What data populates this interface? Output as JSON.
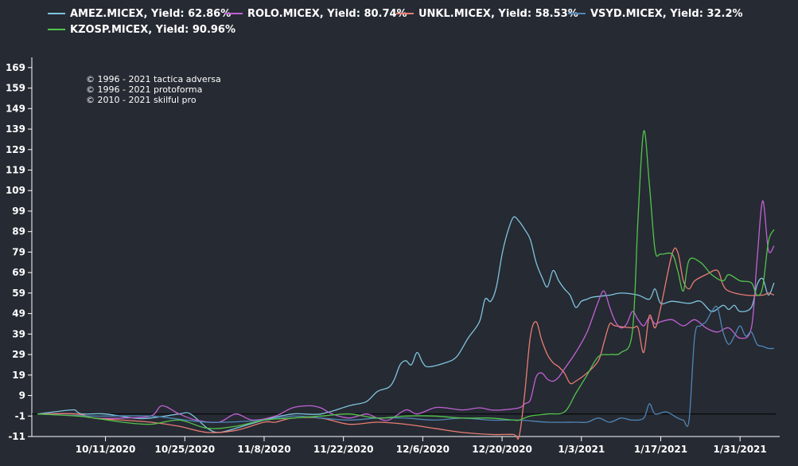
{
  "chart_data": {
    "type": "line",
    "xlabel": "",
    "ylabel": "",
    "x_ticks": [
      "10/11/2020",
      "10/25/2020",
      "11/8/2020",
      "11/22/2020",
      "12/6/2020",
      "12/20/2020",
      "1/3/2021",
      "1/17/2021",
      "1/31/2021"
    ],
    "x_tick_day": [
      12,
      26,
      40,
      54,
      68,
      82,
      96,
      110,
      124
    ],
    "x_range_day": [
      -1,
      131
    ],
    "y_ticks": [
      -11,
      -1,
      9,
      19,
      29,
      39,
      49,
      59,
      69,
      79,
      89,
      99,
      109,
      119,
      129,
      139,
      149,
      159,
      169
    ],
    "ylim": [
      -11,
      174
    ],
    "zero_line": 0,
    "copyright": [
      "© 1996 - 2021 tactica adversa",
      "© 1996 - 2021 protoforma",
      "© 2010 - 2021 skilful pro"
    ],
    "series": [
      {
        "name": "AMEZ.MICEX",
        "legend": "AMEZ.MICEX, Yield: 62.86%",
        "color": "#7fc4dc",
        "points": [
          [
            0,
            0
          ],
          [
            6,
            2
          ],
          [
            7,
            1
          ],
          [
            8,
            0
          ],
          [
            12,
            0
          ],
          [
            17,
            -2
          ],
          [
            20,
            -2
          ],
          [
            25,
            0
          ],
          [
            27,
            0
          ],
          [
            30,
            -7
          ],
          [
            32,
            -9
          ],
          [
            35,
            -7
          ],
          [
            40,
            -3
          ],
          [
            45,
            0
          ],
          [
            50,
            0
          ],
          [
            55,
            4
          ],
          [
            58,
            6
          ],
          [
            60,
            11
          ],
          [
            62,
            13
          ],
          [
            63,
            17
          ],
          [
            64,
            24
          ],
          [
            65,
            26
          ],
          [
            66,
            24
          ],
          [
            67,
            30
          ],
          [
            68,
            25
          ],
          [
            69,
            23
          ],
          [
            72,
            25
          ],
          [
            74,
            28
          ],
          [
            76,
            37
          ],
          [
            78,
            45
          ],
          [
            79,
            56
          ],
          [
            80,
            55
          ],
          [
            81,
            62
          ],
          [
            82,
            78
          ],
          [
            83,
            89
          ],
          [
            84,
            96
          ],
          [
            85,
            94
          ],
          [
            86,
            90
          ],
          [
            87,
            85
          ],
          [
            88,
            74
          ],
          [
            89,
            67
          ],
          [
            90,
            62
          ],
          [
            91,
            70
          ],
          [
            92,
            65
          ],
          [
            93,
            61
          ],
          [
            94,
            58
          ],
          [
            95,
            52
          ],
          [
            96,
            55
          ],
          [
            97,
            56
          ],
          [
            98,
            57
          ],
          [
            101,
            58
          ],
          [
            103,
            59
          ],
          [
            106,
            58
          ],
          [
            108,
            56
          ],
          [
            109,
            61
          ],
          [
            110,
            54
          ],
          [
            112,
            55
          ],
          [
            115,
            54
          ],
          [
            117,
            55
          ],
          [
            119,
            50
          ],
          [
            121,
            53
          ],
          [
            122,
            51
          ],
          [
            123,
            53
          ],
          [
            124,
            50
          ],
          [
            126,
            52
          ],
          [
            127,
            63
          ],
          [
            128,
            66
          ],
          [
            129,
            58
          ],
          [
            130,
            64
          ]
        ]
      },
      {
        "name": "ROLO.MICEX",
        "legend": "ROLO.MICEX, Yield: 80.74%",
        "color": "#c061d3",
        "points": [
          [
            0,
            0
          ],
          [
            7,
            0
          ],
          [
            10,
            -2
          ],
          [
            15,
            -2
          ],
          [
            20,
            -1
          ],
          [
            22,
            4
          ],
          [
            25,
            0
          ],
          [
            28,
            -3
          ],
          [
            32,
            -4
          ],
          [
            35,
            0
          ],
          [
            38,
            -3
          ],
          [
            42,
            -1
          ],
          [
            45,
            3
          ],
          [
            48,
            4
          ],
          [
            50,
            3
          ],
          [
            52,
            0
          ],
          [
            55,
            -2
          ],
          [
            58,
            0
          ],
          [
            60,
            -2
          ],
          [
            62,
            -3
          ],
          [
            65,
            2
          ],
          [
            67,
            0
          ],
          [
            70,
            3
          ],
          [
            72,
            3
          ],
          [
            75,
            2
          ],
          [
            78,
            3
          ],
          [
            80,
            2
          ],
          [
            82,
            2
          ],
          [
            85,
            3
          ],
          [
            86,
            5
          ],
          [
            87,
            7
          ],
          [
            88,
            18
          ],
          [
            89,
            20
          ],
          [
            90,
            17
          ],
          [
            91,
            16
          ],
          [
            92,
            18
          ],
          [
            93,
            22
          ],
          [
            95,
            30
          ],
          [
            97,
            40
          ],
          [
            99,
            55
          ],
          [
            100,
            60
          ],
          [
            101,
            52
          ],
          [
            102,
            45
          ],
          [
            103,
            42
          ],
          [
            104,
            44
          ],
          [
            105,
            50
          ],
          [
            106,
            46
          ],
          [
            107,
            43
          ],
          [
            108,
            47
          ],
          [
            109,
            44
          ],
          [
            110,
            45
          ],
          [
            112,
            46
          ],
          [
            114,
            43
          ],
          [
            116,
            46
          ],
          [
            118,
            42
          ],
          [
            120,
            40
          ],
          [
            122,
            42
          ],
          [
            124,
            37
          ],
          [
            126,
            42
          ],
          [
            127,
            75
          ],
          [
            128,
            104
          ],
          [
            129,
            80
          ],
          [
            130,
            82
          ]
        ]
      },
      {
        "name": "UNKL.MICEX",
        "legend": "UNKL.MICEX, Yield: 58.53%",
        "color": "#e97d73",
        "points": [
          [
            0,
            0
          ],
          [
            7,
            0
          ],
          [
            10,
            -2
          ],
          [
            15,
            -3
          ],
          [
            20,
            -4
          ],
          [
            25,
            -6
          ],
          [
            30,
            -9
          ],
          [
            35,
            -8
          ],
          [
            40,
            -4
          ],
          [
            42,
            -4
          ],
          [
            45,
            -2
          ],
          [
            50,
            -2
          ],
          [
            55,
            -5
          ],
          [
            60,
            -4
          ],
          [
            65,
            -5
          ],
          [
            70,
            -7
          ],
          [
            75,
            -9
          ],
          [
            80,
            -10
          ],
          [
            84,
            -10
          ],
          [
            85,
            -11
          ],
          [
            86,
            10
          ],
          [
            87,
            38
          ],
          [
            88,
            45
          ],
          [
            89,
            36
          ],
          [
            90,
            29
          ],
          [
            91,
            25
          ],
          [
            92,
            23
          ],
          [
            93,
            20
          ],
          [
            94,
            15
          ],
          [
            95,
            16
          ],
          [
            97,
            20
          ],
          [
            99,
            26
          ],
          [
            100,
            35
          ],
          [
            101,
            44
          ],
          [
            102,
            43
          ],
          [
            105,
            42
          ],
          [
            106,
            42
          ],
          [
            107,
            30
          ],
          [
            108,
            48
          ],
          [
            109,
            42
          ],
          [
            110,
            52
          ],
          [
            112,
            78
          ],
          [
            113,
            79
          ],
          [
            114,
            65
          ],
          [
            115,
            61
          ],
          [
            116,
            65
          ],
          [
            118,
            68
          ],
          [
            120,
            70
          ],
          [
            121,
            63
          ],
          [
            122,
            60
          ],
          [
            125,
            58
          ],
          [
            128,
            58
          ],
          [
            129,
            59
          ],
          [
            130,
            58
          ]
        ]
      },
      {
        "name": "VSYD.MICEX",
        "legend": "VSYD.MICEX, Yield: 32.2%",
        "color": "#4f86b5",
        "points": [
          [
            0,
            0
          ],
          [
            10,
            -1
          ],
          [
            20,
            -1
          ],
          [
            30,
            -4
          ],
          [
            40,
            -3
          ],
          [
            45,
            -1
          ],
          [
            50,
            -2
          ],
          [
            55,
            -3
          ],
          [
            60,
            -2
          ],
          [
            65,
            -2
          ],
          [
            70,
            -3
          ],
          [
            75,
            -2
          ],
          [
            80,
            -3
          ],
          [
            85,
            -3
          ],
          [
            90,
            -4
          ],
          [
            95,
            -4
          ],
          [
            97,
            -4
          ],
          [
            99,
            -2
          ],
          [
            101,
            -4
          ],
          [
            103,
            -2
          ],
          [
            105,
            -3
          ],
          [
            107,
            -2
          ],
          [
            108,
            5
          ],
          [
            109,
            0
          ],
          [
            111,
            1
          ],
          [
            113,
            -2
          ],
          [
            114,
            -3
          ],
          [
            115,
            -3
          ],
          [
            116,
            38
          ],
          [
            117,
            43
          ],
          [
            118,
            45
          ],
          [
            119,
            50
          ],
          [
            120,
            52
          ],
          [
            121,
            40
          ],
          [
            122,
            34
          ],
          [
            123,
            38
          ],
          [
            124,
            43
          ],
          [
            125,
            38
          ],
          [
            126,
            40
          ],
          [
            127,
            34
          ],
          [
            128,
            33
          ],
          [
            129,
            32
          ],
          [
            130,
            32
          ]
        ]
      },
      {
        "name": "KZOSP.MICEX",
        "legend": "KZOSP.MICEX, Yield: 90.96%",
        "color": "#52c44b",
        "points": [
          [
            0,
            0
          ],
          [
            7,
            -1
          ],
          [
            10,
            -2
          ],
          [
            15,
            -4
          ],
          [
            20,
            -5
          ],
          [
            25,
            -3
          ],
          [
            30,
            -7
          ],
          [
            35,
            -6
          ],
          [
            40,
            -3
          ],
          [
            45,
            -2
          ],
          [
            50,
            -1
          ],
          [
            55,
            0
          ],
          [
            60,
            -2
          ],
          [
            65,
            -1
          ],
          [
            70,
            -1
          ],
          [
            75,
            -2
          ],
          [
            80,
            -2
          ],
          [
            84,
            -3
          ],
          [
            85,
            -3
          ],
          [
            87,
            -1
          ],
          [
            90,
            0
          ],
          [
            93,
            1
          ],
          [
            95,
            10
          ],
          [
            97,
            19
          ],
          [
            99,
            28
          ],
          [
            101,
            29
          ],
          [
            103,
            30
          ],
          [
            105,
            40
          ],
          [
            106,
            96
          ],
          [
            107,
            138
          ],
          [
            108,
            112
          ],
          [
            109,
            80
          ],
          [
            110,
            78
          ],
          [
            112,
            78
          ],
          [
            113,
            70
          ],
          [
            114,
            60
          ],
          [
            115,
            75
          ],
          [
            117,
            74
          ],
          [
            119,
            68
          ],
          [
            121,
            65
          ],
          [
            122,
            68
          ],
          [
            124,
            65
          ],
          [
            126,
            64
          ],
          [
            127,
            58
          ],
          [
            128,
            62
          ],
          [
            129,
            84
          ],
          [
            130,
            90
          ]
        ]
      }
    ]
  }
}
